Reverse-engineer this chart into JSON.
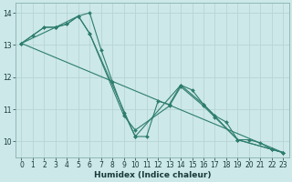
{
  "xlabel": "Humidex (Indice chaleur)",
  "bg_color": "#cce8e8",
  "grid_color": "#b8d4d4",
  "line_color": "#2e7d6e",
  "xlim": [
    -0.5,
    23.5
  ],
  "ylim": [
    9.5,
    14.3
  ],
  "yticks": [
    10,
    11,
    12,
    13,
    14
  ],
  "xticks": [
    0,
    1,
    2,
    3,
    4,
    5,
    6,
    7,
    8,
    9,
    10,
    11,
    12,
    13,
    14,
    15,
    16,
    17,
    18,
    19,
    20,
    21,
    22,
    23
  ],
  "lines": [
    {
      "x": [
        0,
        1,
        2,
        3,
        4,
        5,
        6,
        7,
        8,
        9,
        10,
        11,
        12,
        13,
        14,
        15,
        16,
        17,
        18,
        19,
        20,
        21,
        22,
        23
      ],
      "y": [
        13.05,
        13.3,
        13.55,
        13.55,
        13.65,
        13.9,
        14.0,
        12.85,
        11.85,
        10.9,
        10.15,
        10.15,
        11.25,
        11.15,
        11.75,
        11.6,
        11.15,
        10.8,
        10.6,
        10.05,
        10.05,
        9.95,
        9.75,
        9.65
      ],
      "marker": true
    },
    {
      "x": [
        0,
        2,
        3,
        5,
        6,
        10,
        14,
        16,
        19,
        22,
        23
      ],
      "y": [
        13.05,
        13.55,
        13.55,
        13.9,
        13.35,
        10.15,
        11.75,
        11.15,
        10.05,
        9.75,
        9.65
      ],
      "marker": true
    },
    {
      "x": [
        0,
        3,
        4,
        5,
        6,
        9,
        10,
        13,
        14,
        16,
        17,
        19,
        22,
        23
      ],
      "y": [
        13.05,
        13.55,
        13.65,
        13.9,
        13.35,
        10.8,
        10.35,
        11.1,
        11.7,
        11.1,
        10.75,
        10.05,
        9.75,
        9.65
      ],
      "marker": true
    },
    {
      "x": [
        0,
        23
      ],
      "y": [
        13.05,
        9.65
      ],
      "marker": false
    }
  ]
}
